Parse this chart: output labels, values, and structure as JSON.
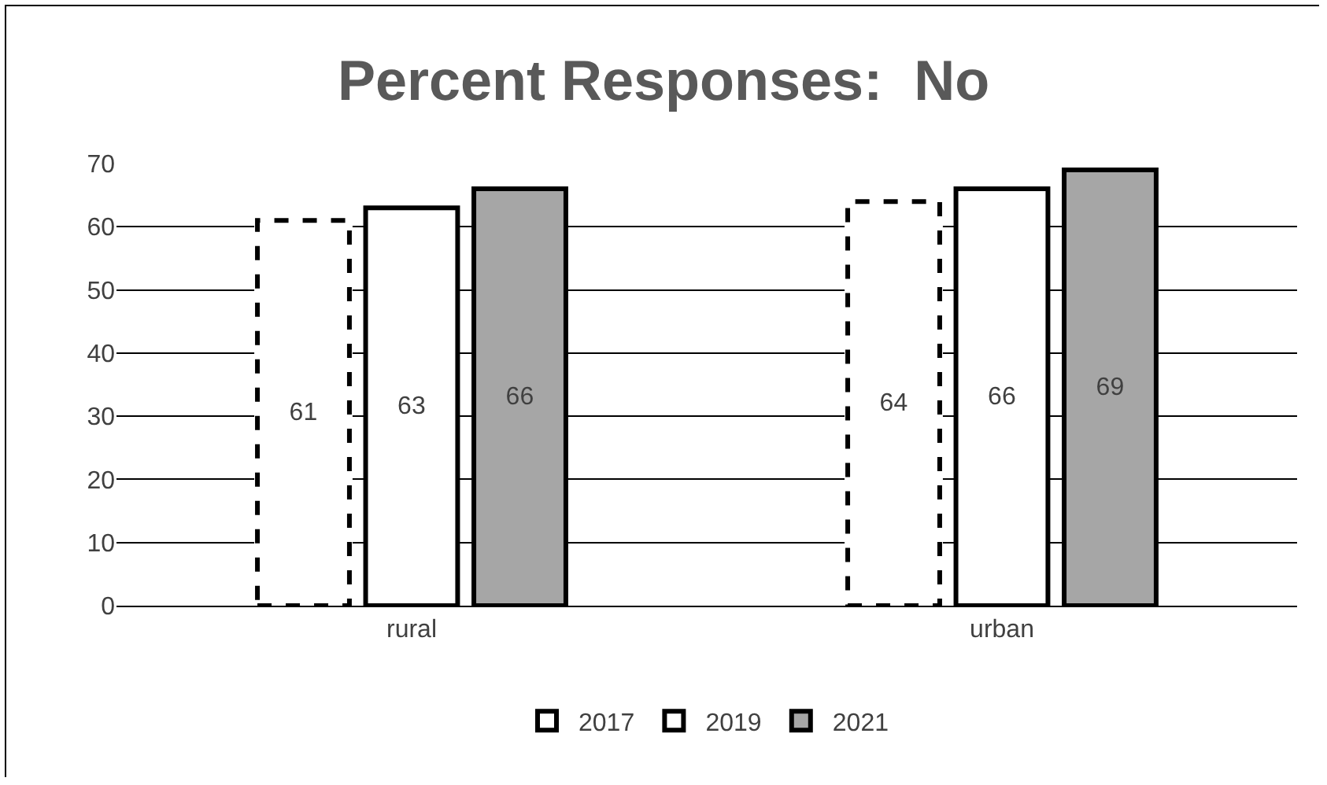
{
  "chart_data": {
    "type": "bar",
    "title": "Percent Responses:  No",
    "categories": [
      "rural",
      "urban"
    ],
    "series": [
      {
        "name": "2017",
        "color": "#ffffff",
        "line_style": "dashed",
        "values": [
          61,
          64
        ]
      },
      {
        "name": "2019",
        "color": "#ffffff",
        "line_style": "solid",
        "values": [
          63,
          66
        ]
      },
      {
        "name": "2021",
        "color": "#a6a6a6",
        "line_style": "solid",
        "values": [
          66,
          69
        ]
      }
    ],
    "ylim": [
      0,
      70
    ],
    "yticks": [
      0,
      10,
      20,
      30,
      40,
      50,
      60,
      70
    ],
    "grid": "y",
    "legend": "bottom",
    "data_labels": true
  }
}
